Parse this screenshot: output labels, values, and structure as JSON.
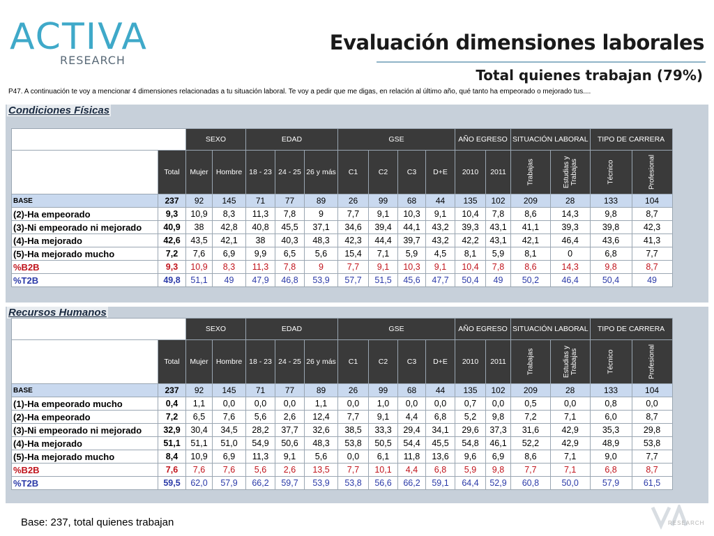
{
  "header": {
    "logo_main": "ACTIVA",
    "logo_sub": "RESEARCH",
    "title": "Evaluación dimensiones laborales",
    "subtitle": "Total quienes trabajan (79%)",
    "question": "P47. A continuación te voy a mencionar 4 dimensiones relacionadas a tu situación laboral. Te voy a pedir que me digas, en relación al último año, qué tanto ha empeorado o mejorado tus...."
  },
  "columns": {
    "groups": [
      {
        "label": "SEXO",
        "span": 2
      },
      {
        "label": "EDAD",
        "span": 3
      },
      {
        "label": "GSE",
        "span": 4
      },
      {
        "label": "AÑO EGRESO",
        "span": 2
      },
      {
        "label": "SITUACIÓN LABORAL",
        "span": 2
      },
      {
        "label": "TIPO DE CARRERA",
        "span": 2
      }
    ],
    "subheaders": [
      "Total",
      "Mujer",
      "Hombre",
      "18 - 23",
      "24 - 25",
      "26 y más",
      "C1",
      "C2",
      "C3",
      "D+E",
      "2010",
      "2011",
      "Trabajas",
      "Estudias y Trabajas",
      "Técnico",
      "Profesional"
    ]
  },
  "sections": [
    {
      "title": "Condiciones Físicas",
      "rows": [
        {
          "label": "BASE",
          "type": "base",
          "values": [
            "237",
            "92",
            "145",
            "71",
            "77",
            "89",
            "26",
            "99",
            "68",
            "44",
            "135",
            "102",
            "209",
            "28",
            "133",
            "104"
          ]
        },
        {
          "label": "(2)-Ha empeorado",
          "type": "normal",
          "values": [
            "9,3",
            "10,9",
            "8,3",
            "11,3",
            "7,8",
            "9",
            "7,7",
            "9,1",
            "10,3",
            "9,1",
            "10,4",
            "7,8",
            "8,6",
            "14,3",
            "9,8",
            "8,7"
          ]
        },
        {
          "label": "(3)-Ni empeorado ni mejorado",
          "type": "normal",
          "values": [
            "40,9",
            "38",
            "42,8",
            "40,8",
            "45,5",
            "37,1",
            "34,6",
            "39,4",
            "44,1",
            "43,2",
            "39,3",
            "43,1",
            "41,1",
            "39,3",
            "39,8",
            "42,3"
          ]
        },
        {
          "label": "(4)-Ha mejorado",
          "type": "normal",
          "values": [
            "42,6",
            "43,5",
            "42,1",
            "38",
            "40,3",
            "48,3",
            "42,3",
            "44,4",
            "39,7",
            "43,2",
            "42,2",
            "43,1",
            "42,1",
            "46,4",
            "43,6",
            "41,3"
          ]
        },
        {
          "label": "(5)-Ha mejorado mucho",
          "type": "normal",
          "values": [
            "7,2",
            "7,6",
            "6,9",
            "9,9",
            "6,5",
            "5,6",
            "15,4",
            "7,1",
            "5,9",
            "4,5",
            "8,1",
            "5,9",
            "8,1",
            "0",
            "6,8",
            "7,7"
          ]
        },
        {
          "label": "%B2B",
          "type": "b2b",
          "values": [
            "9,3",
            "10,9",
            "8,3",
            "11,3",
            "7,8",
            "9",
            "7,7",
            "9,1",
            "10,3",
            "9,1",
            "10,4",
            "7,8",
            "8,6",
            "14,3",
            "9,8",
            "8,7"
          ]
        },
        {
          "label": "%T2B",
          "type": "t2b",
          "values": [
            "49,8",
            "51,1",
            "49",
            "47,9",
            "46,8",
            "53,9",
            "57,7",
            "51,5",
            "45,6",
            "47,7",
            "50,4",
            "49",
            "50,2",
            "46,4",
            "50,4",
            "49"
          ]
        }
      ]
    },
    {
      "title": "Recursos Humanos",
      "rows": [
        {
          "label": "BASE",
          "type": "base",
          "values": [
            "237",
            "92",
            "145",
            "71",
            "77",
            "89",
            "26",
            "99",
            "68",
            "44",
            "135",
            "102",
            "209",
            "28",
            "133",
            "104"
          ]
        },
        {
          "label": "(1)-Ha empeorado mucho",
          "type": "normal",
          "values": [
            "0,4",
            "1,1",
            "0,0",
            "0,0",
            "0,0",
            "1,1",
            "0,0",
            "1,0",
            "0,0",
            "0,0",
            "0,7",
            "0,0",
            "0,5",
            "0,0",
            "0,8",
            "0,0"
          ]
        },
        {
          "label": "(2)-Ha empeorado",
          "type": "normal",
          "values": [
            "7,2",
            "6,5",
            "7,6",
            "5,6",
            "2,6",
            "12,4",
            "7,7",
            "9,1",
            "4,4",
            "6,8",
            "5,2",
            "9,8",
            "7,2",
            "7,1",
            "6,0",
            "8,7"
          ]
        },
        {
          "label": "(3)-Ni empeorado ni mejorado",
          "type": "normal",
          "values": [
            "32,9",
            "30,4",
            "34,5",
            "28,2",
            "37,7",
            "32,6",
            "38,5",
            "33,3",
            "29,4",
            "34,1",
            "29,6",
            "37,3",
            "31,6",
            "42,9",
            "35,3",
            "29,8"
          ]
        },
        {
          "label": "(4)-Ha mejorado",
          "type": "normal",
          "values": [
            "51,1",
            "51,1",
            "51,0",
            "54,9",
            "50,6",
            "48,3",
            "53,8",
            "50,5",
            "54,4",
            "45,5",
            "54,8",
            "46,1",
            "52,2",
            "42,9",
            "48,9",
            "53,8"
          ]
        },
        {
          "label": "(5)-Ha mejorado mucho",
          "type": "normal",
          "values": [
            "8,4",
            "10,9",
            "6,9",
            "11,3",
            "9,1",
            "5,6",
            "0,0",
            "6,1",
            "11,8",
            "13,6",
            "9,6",
            "6,9",
            "8,6",
            "7,1",
            "9,0",
            "7,7"
          ]
        },
        {
          "label": "%B2B",
          "type": "b2b",
          "values": [
            "7,6",
            "7,6",
            "7,6",
            "5,6",
            "2,6",
            "13,5",
            "7,7",
            "10,1",
            "4,4",
            "6,8",
            "5,9",
            "9,8",
            "7,7",
            "7,1",
            "6,8",
            "8,7"
          ]
        },
        {
          "label": "%T2B",
          "type": "t2b",
          "values": [
            "59,5",
            "62,0",
            "57,9",
            "66,2",
            "59,7",
            "53,9",
            "53,8",
            "56,6",
            "66,2",
            "59,1",
            "64,4",
            "52,9",
            "60,8",
            "50,0",
            "57,9",
            "61,5"
          ]
        }
      ]
    }
  ],
  "footer": {
    "base_note": "Base: 237, total quienes trabajan",
    "brand_sub": "RESEARCH"
  },
  "colors": {
    "header_bg": "#3a3a3a",
    "base_row_bg": "#c9d9ef",
    "b2b_text": "#c0141c",
    "t2b_text": "#2b3aa8",
    "panel_bg": "#c7d0da",
    "logo_accent": "#3fa9c9"
  }
}
